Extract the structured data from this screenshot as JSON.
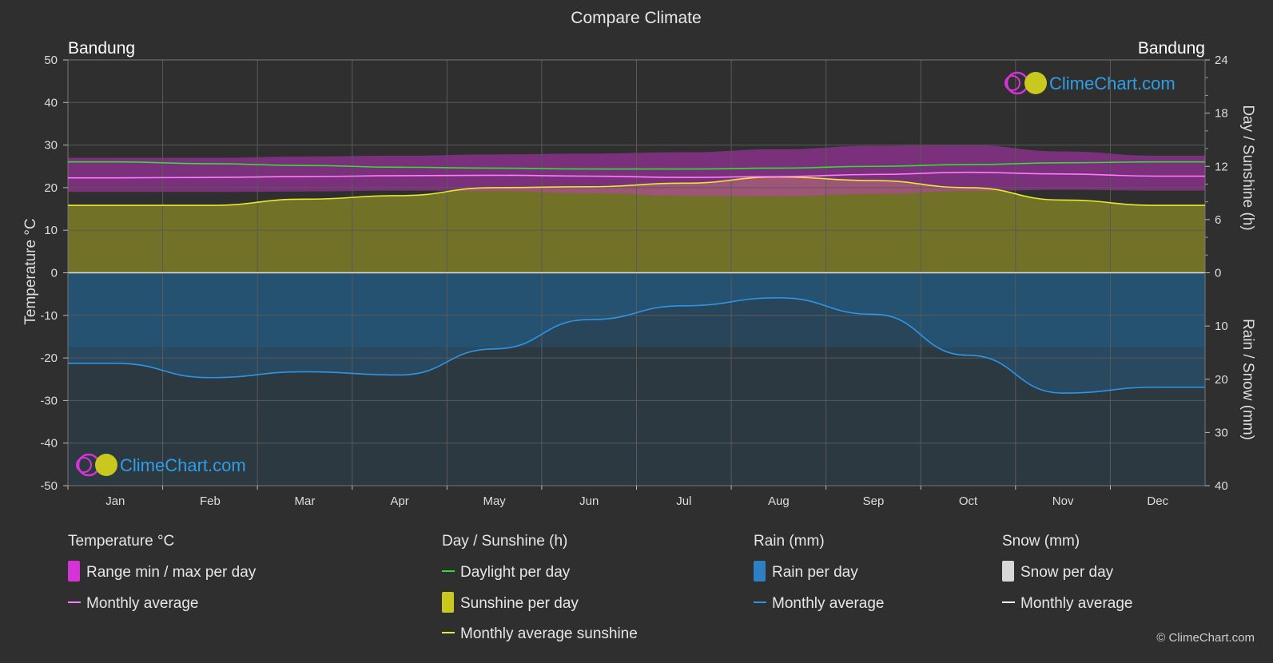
{
  "title": "Compare Climate",
  "location_left": "Bandung",
  "location_right": "Bandung",
  "watermark": "ClimeChart.com",
  "copyright": "© ClimeChart.com",
  "colors": {
    "background": "#2f2f2f",
    "temp_range": "#d633d6",
    "temp_avg": "#ff7bff",
    "daylight": "#33dd33",
    "sunshine_fill": "#a8a822",
    "sunshine_avg": "#e8e830",
    "rain_fill": "#1f6fa8",
    "rain_avg": "#2e95e6",
    "snow_avg": "#ffffff",
    "logo_blue": "#2e9ee6"
  },
  "legend": {
    "temperature": {
      "heading": "Temperature °C",
      "range_label": "Range min / max per day",
      "avg_label": "Monthly average"
    },
    "sunshine": {
      "heading": "Day / Sunshine (h)",
      "daylight_label": "Daylight per day",
      "sunshine_label": "Sunshine per day",
      "avg_label": "Monthly average sunshine"
    },
    "rain": {
      "heading": "Rain (mm)",
      "rain_label": "Rain per day",
      "avg_label": "Monthly average"
    },
    "snow": {
      "heading": "Snow (mm)",
      "snow_label": "Snow per day",
      "avg_label": "Monthly average"
    }
  },
  "chart_data": {
    "type": "line",
    "title": "Compare Climate",
    "months": [
      "Jan",
      "Feb",
      "Mar",
      "Apr",
      "May",
      "Jun",
      "Jul",
      "Aug",
      "Sep",
      "Oct",
      "Nov",
      "Dec"
    ],
    "y_left": {
      "label": "Temperature °C",
      "min": -50,
      "max": 50,
      "ticks": [
        50,
        40,
        30,
        20,
        10,
        0,
        -10,
        -20,
        -30,
        -40,
        -50
      ]
    },
    "y_right_top": {
      "label": "Day / Sunshine (h)",
      "min": 0,
      "max": 24,
      "ticks": [
        24,
        18,
        12,
        6,
        0
      ]
    },
    "y_right_bottom": {
      "label": "Rain / Snow (mm)",
      "min": 0,
      "max": 40,
      "ticks": [
        0,
        10,
        20,
        30,
        40
      ]
    },
    "grid": true,
    "series": [
      {
        "name": "Daylight per day",
        "axis": "hours",
        "values": [
          12.5,
          12.3,
          12.1,
          11.9,
          11.8,
          11.7,
          11.7,
          11.8,
          12.0,
          12.2,
          12.4,
          12.5
        ]
      },
      {
        "name": "Monthly average sunshine",
        "axis": "hours",
        "values": [
          7.6,
          7.6,
          8.3,
          8.7,
          9.6,
          9.7,
          10.1,
          10.8,
          10.4,
          9.6,
          8.2,
          7.6
        ]
      },
      {
        "name": "Monthly average",
        "kind": "temperature",
        "axis": "temp",
        "values": [
          22.3,
          22.4,
          22.6,
          22.8,
          22.9,
          22.7,
          22.4,
          22.6,
          23.1,
          23.6,
          23.2,
          22.7
        ]
      },
      {
        "name": "Temperature max",
        "kind": "range_max",
        "axis": "temp",
        "values": [
          27.0,
          27.0,
          27.3,
          27.5,
          27.8,
          28.0,
          28.3,
          29.0,
          29.8,
          30.0,
          28.5,
          27.5
        ]
      },
      {
        "name": "Temperature min",
        "kind": "range_min",
        "axis": "temp",
        "values": [
          19.0,
          19.0,
          19.1,
          19.3,
          19.2,
          18.7,
          18.1,
          18.0,
          18.5,
          19.2,
          19.5,
          19.3
        ]
      },
      {
        "name": "Rain monthly average",
        "kind": "rain",
        "axis": "rain_mm",
        "values": [
          17.0,
          19.7,
          18.6,
          19.2,
          14.3,
          8.8,
          6.2,
          4.7,
          7.8,
          15.5,
          22.6,
          21.5
        ]
      }
    ]
  }
}
